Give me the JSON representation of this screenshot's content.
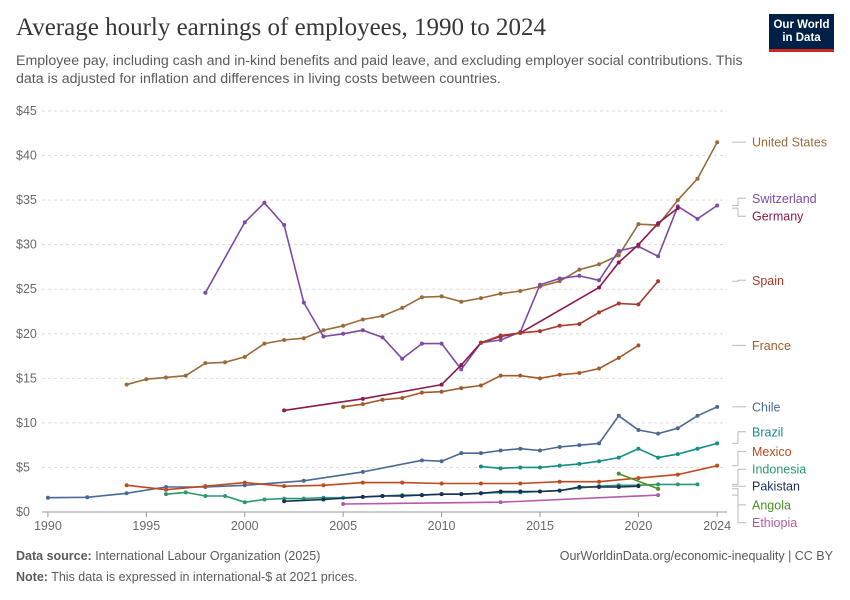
{
  "header": {
    "title": "Average hourly earnings of employees, 1990 to 2024",
    "subtitle": "Employee pay, including cash and in-kind benefits and paid leave, and excluding employer social contributions. This data is adjusted for inflation and differences in living costs between countries.",
    "logo_line1": "Our World",
    "logo_line2": "in Data"
  },
  "footer": {
    "source_label": "Data source:",
    "source_text": " International Labour Organization (2025)",
    "note_label": "Note:",
    "note_text": " This data is expressed in international-$ at 2021 prices.",
    "credit": "OurWorldinData.org/economic-inequality | CC BY"
  },
  "colors": {
    "grid": "#dddddd",
    "axis": "#999999",
    "tick_text": "#6a6a6a"
  },
  "chart_data": {
    "type": "line",
    "title": "Average hourly earnings of employees, 1990 to 2024",
    "xlim": [
      1989.7,
      2024.5
    ],
    "ylim": [
      0,
      45
    ],
    "x_ticks": [
      1990,
      1995,
      2000,
      2005,
      2010,
      2015,
      2020,
      2024
    ],
    "x_tick_labels": [
      "1990",
      "1995",
      "2000",
      "2005",
      "2010",
      "2015",
      "2020",
      "2024"
    ],
    "y_ticks": [
      0,
      5,
      10,
      15,
      20,
      25,
      30,
      35,
      40,
      45
    ],
    "y_tick_labels": [
      "$0",
      "$5",
      "$10",
      "$15",
      "$20",
      "$25",
      "$30",
      "$35",
      "$40",
      "$45"
    ],
    "grid": "horizontal dashed",
    "legend": "right (line-end labels)",
    "series": [
      {
        "name": "United States",
        "color": "#9a6b3a",
        "label_y": 41.5,
        "x": [
          1994,
          1995,
          1996,
          1997,
          1998,
          1999,
          2000,
          2001,
          2002,
          2003,
          2004,
          2005,
          2006,
          2007,
          2008,
          2009,
          2010,
          2011,
          2012,
          2013,
          2014,
          2015,
          2016,
          2017,
          2018,
          2019,
          2020,
          2021,
          2022,
          2023,
          2024
        ],
        "y": [
          14.3,
          14.9,
          15.1,
          15.3,
          16.7,
          16.8,
          17.4,
          18.9,
          19.3,
          19.5,
          20.4,
          20.9,
          21.6,
          22.0,
          22.9,
          24.1,
          24.2,
          23.6,
          24.0,
          24.5,
          24.8,
          25.3,
          25.9,
          27.2,
          27.8,
          28.8,
          32.3,
          32.2,
          35.0,
          37.4,
          41.5
        ]
      },
      {
        "name": "Switzerland",
        "color": "#7d4ba3",
        "label_y": 35.2,
        "x": [
          1998,
          2000,
          2001,
          2002,
          2003,
          2004,
          2005,
          2006,
          2007,
          2008,
          2009,
          2010,
          2011,
          2012,
          2013,
          2014,
          2015,
          2016,
          2017,
          2018,
          2019,
          2020,
          2021,
          2022,
          2023,
          2024
        ],
        "y": [
          24.6,
          32.5,
          34.7,
          32.2,
          23.5,
          19.7,
          20.0,
          20.4,
          19.6,
          17.2,
          18.9,
          18.9,
          16.0,
          19.0,
          19.3,
          20.2,
          25.5,
          26.2,
          26.5,
          26.0,
          29.3,
          29.8,
          28.7,
          34.3,
          32.9,
          34.4
        ]
      },
      {
        "name": "Germany",
        "color": "#8b1a4e",
        "label_y": 33.2,
        "x": [
          2002,
          2006,
          2010,
          2011,
          2012,
          2013,
          2014,
          2015,
          2016,
          2017,
          2018,
          2019,
          2020,
          2021,
          2022
        ],
        "y": [
          11.4,
          12.7,
          14.3,
          16.5,
          19.0,
          19.7,
          20.1,
          null,
          null,
          null,
          25.2,
          28.0,
          30.0,
          32.4,
          34.1
        ]
      },
      {
        "name": "Spain",
        "color": "#a83a2b",
        "label_y": 26.0,
        "x": [
          2012,
          2013,
          2014,
          2015,
          2016,
          2017,
          2018,
          2019,
          2020,
          2021
        ],
        "y": [
          19.0,
          19.8,
          20.1,
          20.3,
          20.9,
          21.1,
          22.4,
          23.4,
          23.3,
          25.9
        ]
      },
      {
        "name": "France",
        "color": "#a35a2a",
        "label_y": 18.7,
        "x": [
          2005,
          2006,
          2007,
          2008,
          2009,
          2010,
          2011,
          2012,
          2013,
          2014,
          2015,
          2016,
          2017,
          2018,
          2019,
          2020
        ],
        "y": [
          11.8,
          12.1,
          12.6,
          12.8,
          13.4,
          13.5,
          13.9,
          14.2,
          15.3,
          15.3,
          15.0,
          15.4,
          15.6,
          16.1,
          17.3,
          18.7
        ]
      },
      {
        "name": "Chile",
        "color": "#4a6a95",
        "label_y": 11.8,
        "x": [
          1990,
          1992,
          1994,
          1996,
          1998,
          2000,
          2003,
          2006,
          2009,
          2010,
          2011,
          2012,
          2013,
          2014,
          2015,
          2016,
          2017,
          2018,
          2019,
          2020,
          2021,
          2022,
          2023,
          2024
        ],
        "y": [
          1.6,
          1.65,
          2.1,
          2.8,
          2.8,
          3.0,
          3.5,
          4.5,
          5.8,
          5.7,
          6.6,
          6.6,
          6.9,
          7.1,
          6.9,
          7.3,
          7.5,
          7.7,
          10.8,
          9.2,
          8.8,
          9.4,
          10.8,
          11.8
        ]
      },
      {
        "name": "Brazil",
        "color": "#148f86",
        "label_y": 9.0,
        "x": [
          2012,
          2013,
          2014,
          2015,
          2016,
          2017,
          2018,
          2019,
          2020,
          2021,
          2022,
          2023,
          2024
        ],
        "y": [
          5.1,
          4.9,
          5.0,
          5.0,
          5.2,
          5.4,
          5.7,
          6.1,
          7.1,
          6.1,
          6.5,
          7.1,
          7.7
        ]
      },
      {
        "name": "Mexico",
        "color": "#bf4a1f",
        "label_y": 6.8,
        "x": [
          1994,
          1996,
          1998,
          2000,
          2002,
          2004,
          2006,
          2008,
          2010,
          2012,
          2014,
          2016,
          2018,
          2020,
          2022,
          2024
        ],
        "y": [
          3.0,
          2.5,
          2.9,
          3.3,
          2.9,
          3.0,
          3.3,
          3.3,
          3.2,
          3.2,
          3.2,
          3.4,
          3.4,
          3.8,
          4.2,
          5.2
        ]
      },
      {
        "name": "Indonesia",
        "color": "#2a9870",
        "label_y": 4.8,
        "x": [
          1996,
          1997,
          1998,
          1999,
          2000,
          2001,
          2002,
          2003,
          2004,
          2005,
          2006,
          2007,
          2008,
          2009,
          2010,
          2011,
          2012,
          2013,
          2014,
          2015,
          2016,
          2017,
          2018,
          2019,
          2020,
          2021,
          2022,
          2023
        ],
        "y": [
          2.0,
          2.2,
          1.8,
          1.8,
          1.1,
          1.4,
          1.5,
          1.5,
          1.6,
          1.6,
          1.7,
          1.8,
          1.9,
          1.9,
          2.0,
          2.0,
          2.1,
          2.2,
          2.2,
          2.3,
          2.4,
          2.7,
          2.9,
          3.0,
          3.0,
          3.1,
          3.1,
          3.1
        ]
      },
      {
        "name": "Pakistan",
        "color": "#1a2f55",
        "label_y": 2.9,
        "x": [
          2002,
          2004,
          2006,
          2007,
          2008,
          2009,
          2010,
          2011,
          2012,
          2013,
          2014,
          2015,
          2016,
          2017,
          2018,
          2019,
          2020
        ],
        "y": [
          1.2,
          1.4,
          1.7,
          1.8,
          1.8,
          1.9,
          2.0,
          2.0,
          2.1,
          2.3,
          2.3,
          2.3,
          2.4,
          2.8,
          2.8,
          2.8,
          2.9
        ]
      },
      {
        "name": "Angola",
        "color": "#4d8f22",
        "label_y": 0.8,
        "x": [
          2019,
          2021
        ],
        "y": [
          4.3,
          2.6
        ]
      },
      {
        "name": "Ethiopia",
        "color": "#b45ba8",
        "label_y": -1.2,
        "x": [
          2005,
          2013,
          2021
        ],
        "y": [
          0.9,
          1.1,
          1.9
        ]
      }
    ]
  }
}
